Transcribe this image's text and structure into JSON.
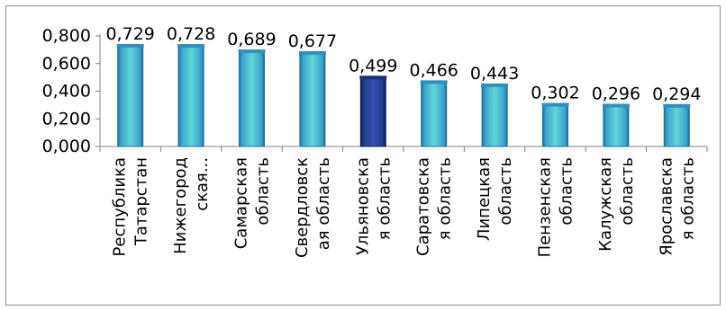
{
  "chart_data": {
    "type": "bar",
    "title": "",
    "xlabel": "",
    "ylabel": "",
    "ylim": [
      0,
      0.8
    ],
    "yticks": [
      "0,000",
      "0,200",
      "0,400",
      "0,600",
      "0,800"
    ],
    "grid": false,
    "legend": "none",
    "categories": [
      [
        "Республика",
        "Татарстан"
      ],
      [
        "Нижегород",
        "ская..."
      ],
      [
        "Самарская",
        "область"
      ],
      [
        "Свердловск",
        "ая область"
      ],
      [
        "Ульяновска",
        "я область"
      ],
      [
        "Саратовска",
        "я область"
      ],
      [
        "Липецкая",
        "область"
      ],
      [
        "Пензенская",
        "область"
      ],
      [
        "Калужская",
        "область"
      ],
      [
        "Ярославска",
        "я область"
      ]
    ],
    "values": [
      0.729,
      0.728,
      0.689,
      0.677,
      0.499,
      0.466,
      0.443,
      0.302,
      0.296,
      0.294
    ],
    "data_labels": [
      "0,729",
      "0,728",
      "0,689",
      "0,677",
      "0,499",
      "0,466",
      "0,443",
      "0,302",
      "0,296",
      "0,294"
    ],
    "highlight_index": 4,
    "colors": {
      "bar": "#3aa3cf",
      "bar_light": "#5fd6d6",
      "bar_edge": "#1f6f96",
      "highlight": "#243f8f",
      "highlight_edge": "#111d52",
      "axis": "#808080"
    }
  }
}
